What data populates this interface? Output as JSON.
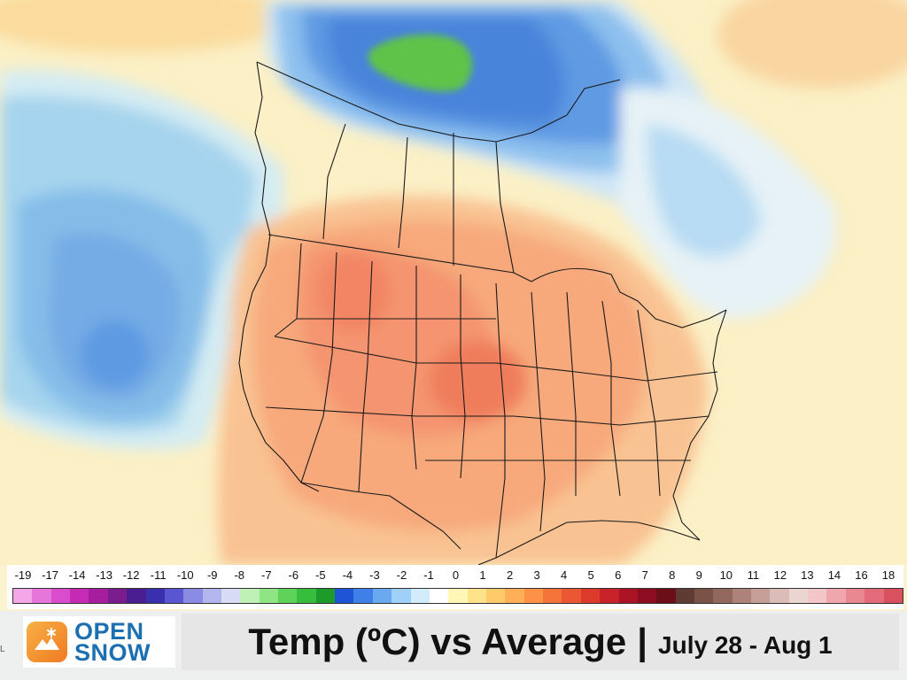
{
  "header": {
    "title": "Temp (ºC) vs Average",
    "separator": "|",
    "date_range": "July 28 - Aug 1"
  },
  "brand": {
    "line1": "OPEN",
    "line2": "SNOW",
    "logo_icon": "snowflake-mountain-icon",
    "accent_color": "#f28a2a",
    "text_color": "#1c6fb0"
  },
  "edge_char": "L",
  "legend": {
    "unit": "ºC",
    "tick_labels": [
      "-19",
      "-17",
      "-14",
      "-13",
      "-12",
      "-11",
      "-10",
      "-9",
      "-8",
      "-7",
      "-6",
      "-5",
      "-4",
      "-3",
      "-2",
      "-1",
      "0",
      "1",
      "2",
      "3",
      "4",
      "5",
      "6",
      "7",
      "8",
      "9",
      "10",
      "11",
      "12",
      "13",
      "14",
      "16",
      "18"
    ],
    "colors": [
      "#f3a6e8",
      "#e676da",
      "#d94ccc",
      "#c62bb7",
      "#a61d9e",
      "#7b1c8e",
      "#4a1d91",
      "#3a2fae",
      "#5a55d0",
      "#8a8be3",
      "#b3b6ee",
      "#d9dcf5",
      "#bff0b5",
      "#8fe483",
      "#5fd25a",
      "#36bd3c",
      "#1d9b2a",
      "#1e55d6",
      "#3f80e8",
      "#6aa9f0",
      "#9fd0f7",
      "#d3ecfb",
      "#ffffff",
      "#fff7b5",
      "#ffe38a",
      "#ffcb6a",
      "#ffb056",
      "#fd9146",
      "#f5743a",
      "#eb5633",
      "#dc3b2b",
      "#c8232a",
      "#ab1424",
      "#8c0c20",
      "#6b0e17",
      "#5e3c35",
      "#7a5247",
      "#93685c",
      "#ac8279",
      "#c59e97",
      "#dbbcb6",
      "#ebd5d1",
      "#f3c7c9",
      "#f0a6ad",
      "#ea8892",
      "#e46b79",
      "#d9515f"
    ]
  },
  "map": {
    "region": "North America",
    "hot_color": "#f47f55",
    "warm_color": "#f9b58a",
    "cold_color": "#4d8de6",
    "coldest_color": "#4fbd45"
  }
}
